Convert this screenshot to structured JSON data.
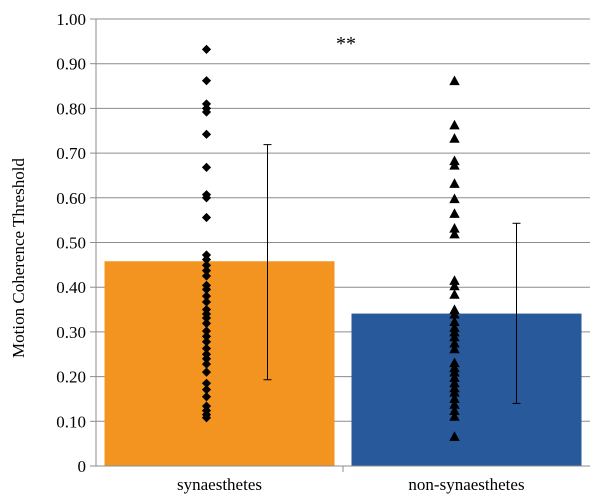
{
  "chart_data": {
    "type": "bar",
    "title": "",
    "xlabel": "",
    "ylabel": "Motion Coherence Threshold",
    "ylim": [
      0,
      1.0
    ],
    "y_ticks": [
      "0",
      "0.10",
      "0.20",
      "0.30",
      "0.40",
      "0.50",
      "0.60",
      "0.70",
      "0.80",
      "0.90",
      "1.00"
    ],
    "grid": true,
    "categories": [
      "synaesthetes",
      "non-synaesthetes"
    ],
    "values": [
      0.458,
      0.341
    ],
    "error_bars": [
      {
        "low": 0.193,
        "high": 0.719
      },
      {
        "low": 0.14,
        "high": 0.543
      }
    ],
    "bar_colors": [
      "#F39320",
      "#27599B"
    ],
    "annotation": "**",
    "individual_points": [
      {
        "marker": "diamond",
        "values": [
          0.932,
          0.862,
          0.81,
          0.8,
          0.792,
          0.742,
          0.668,
          0.607,
          0.6,
          0.556,
          0.472,
          0.462,
          0.449,
          0.437,
          0.425,
          0.404,
          0.395,
          0.38,
          0.367,
          0.35,
          0.34,
          0.331,
          0.319,
          0.302,
          0.29,
          0.278,
          0.263,
          0.25,
          0.24,
          0.228,
          0.21,
          0.185,
          0.171,
          0.155,
          0.134,
          0.124,
          0.115,
          0.108
        ]
      },
      {
        "marker": "triangle",
        "values": [
          0.862,
          0.763,
          0.733,
          0.683,
          0.673,
          0.632,
          0.598,
          0.565,
          0.532,
          0.519,
          0.415,
          0.403,
          0.384,
          0.35,
          0.34,
          0.323,
          0.31,
          0.3,
          0.289,
          0.275,
          0.262,
          0.231,
          0.22,
          0.21,
          0.198,
          0.186,
          0.175,
          0.165,
          0.151,
          0.138,
          0.124,
          0.111,
          0.066
        ]
      }
    ]
  }
}
